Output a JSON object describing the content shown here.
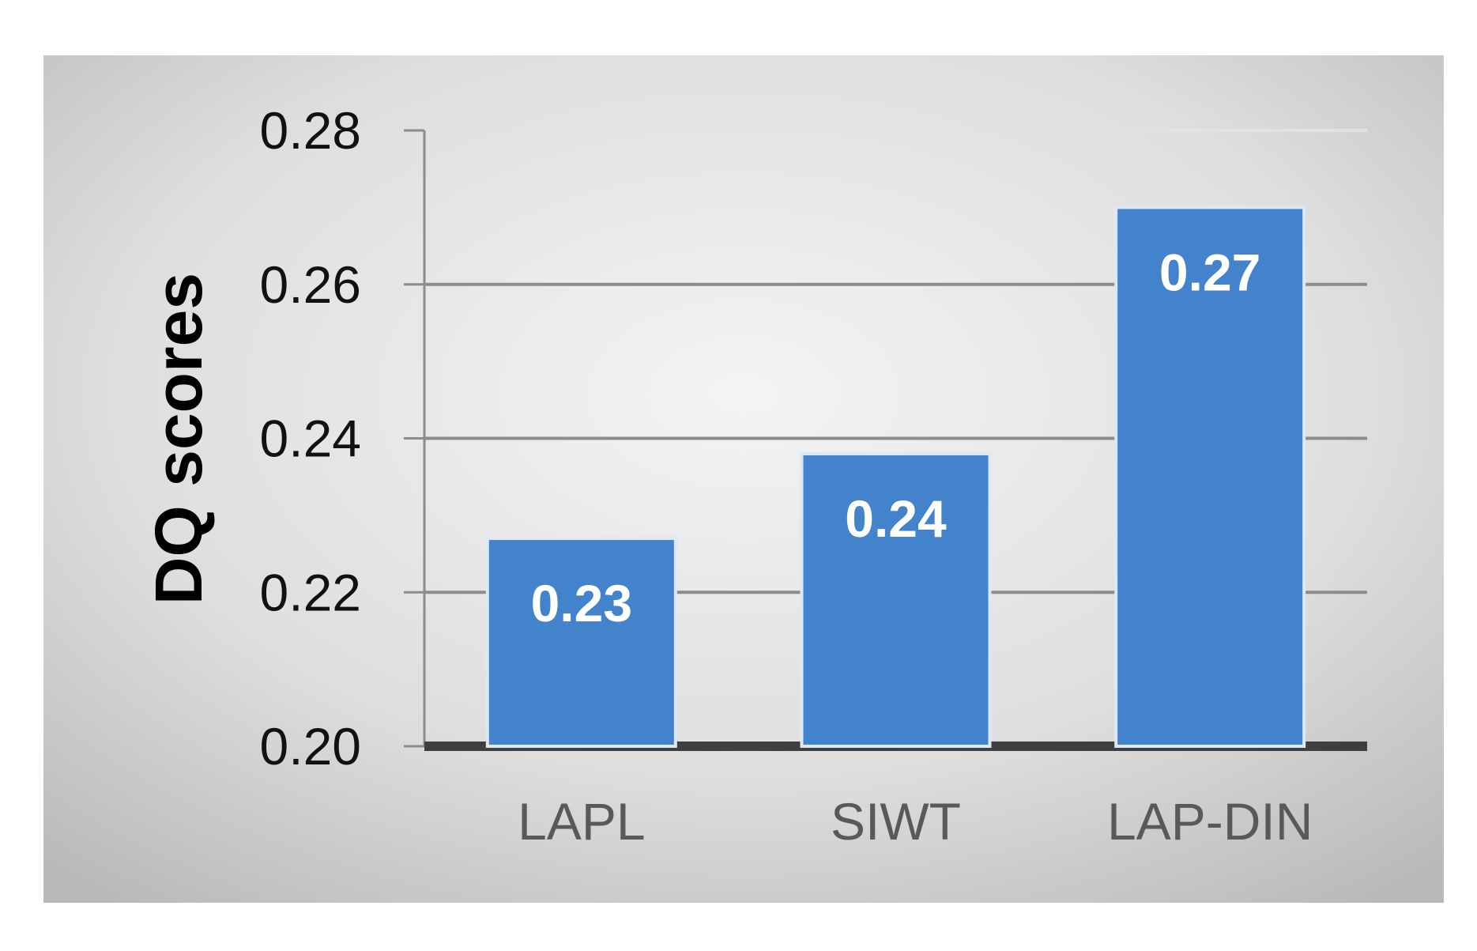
{
  "chart_data": {
    "type": "bar",
    "title": "",
    "xlabel": "",
    "ylabel": "DQ scores",
    "categories": [
      "LAPL",
      "SIWT",
      "LAP-DIN"
    ],
    "values": [
      0.227,
      0.238,
      0.27
    ],
    "data_labels": [
      "0.23",
      "0.24",
      "0.27"
    ],
    "ylim": [
      0.2,
      0.28
    ],
    "yticks": [
      0.2,
      0.22,
      0.24,
      0.26,
      0.28
    ],
    "ytick_labels": [
      "0.20",
      "0.22",
      "0.24",
      "0.26",
      "0.28"
    ],
    "grid": true,
    "legend": "none",
    "colors": {
      "bar": "#4383cb",
      "bar_edge": "#dbe8f6",
      "background_edge": "#b8b8b8",
      "background_center": "#f2f2f2",
      "gridline": "#8c8c8c",
      "baseline": "#3f3f3f"
    }
  }
}
